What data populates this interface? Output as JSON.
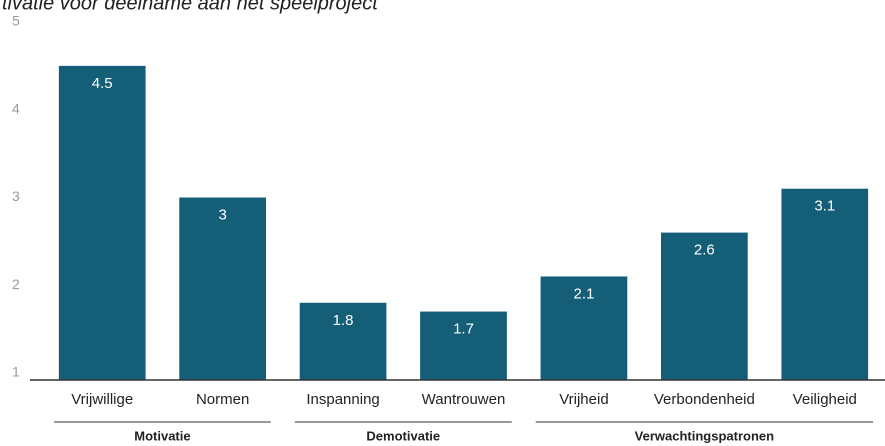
{
  "chart_data": {
    "type": "bar",
    "title": "tivatie voor deelname aan het speelproject",
    "categories": [
      "Vrijwillige",
      "Normen",
      "Inspanning",
      "Wantrouwen",
      "Vrijheid",
      "Verbondenheid",
      "Veiligheid"
    ],
    "values": [
      4.5,
      3,
      1.8,
      1.7,
      2.1,
      2.6,
      3.1
    ],
    "groups": [
      {
        "name": "Motivatie",
        "size": 2
      },
      {
        "name": "Demotivatie",
        "size": 2
      },
      {
        "name": "Verwachtingspatronen",
        "size": 3
      }
    ],
    "color": "#155e78",
    "ylim": [
      0.92,
      5
    ],
    "yticks": [
      1,
      2,
      3,
      4,
      5
    ],
    "grid": false
  }
}
